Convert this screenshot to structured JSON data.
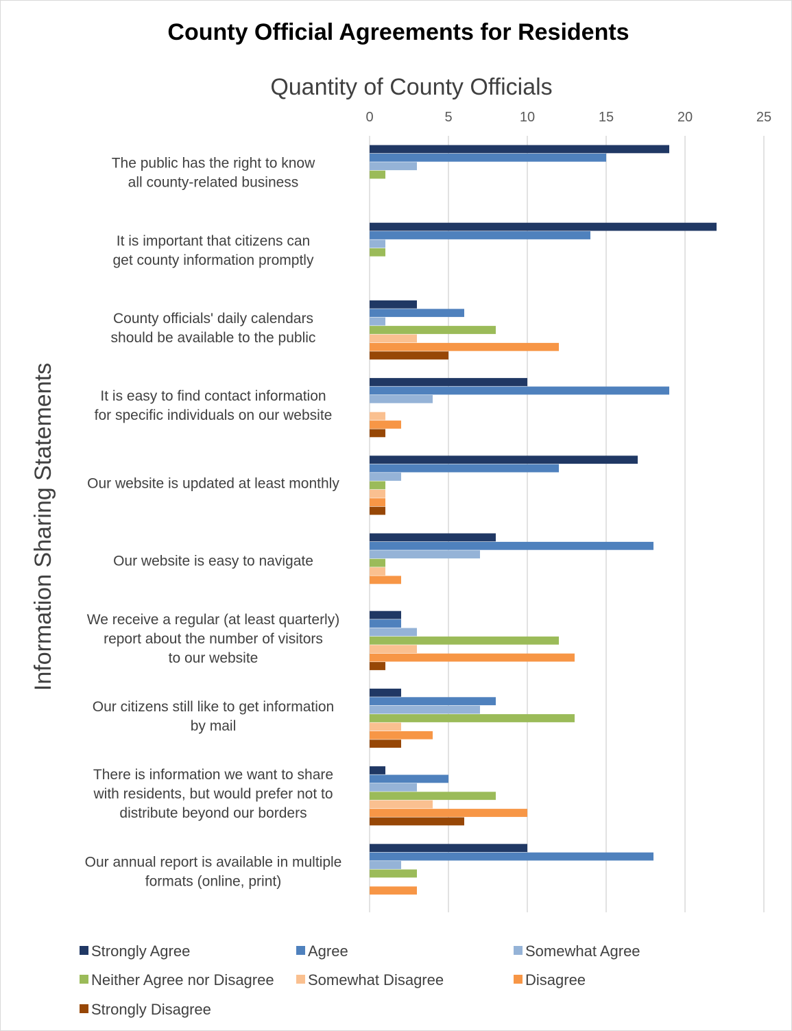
{
  "chart_data": {
    "type": "bar",
    "orientation": "horizontal",
    "title": "County Official Agreements for Residents",
    "xlabel": "Quantity of County Officials",
    "ylabel": "Information Sharing Statements",
    "xlim": [
      0,
      25
    ],
    "xticks": [
      0,
      5,
      10,
      15,
      20,
      25
    ],
    "grid": true,
    "legend_position": "bottom",
    "categories": [
      [
        "The public has the right to know",
        "all county-related business"
      ],
      [
        "It is important that citizens can",
        "get county information promptly"
      ],
      [
        "County officials' daily calendars",
        "should be available to the public"
      ],
      [
        "It is easy to find contact information",
        "for specific individuals on our website"
      ],
      [
        "Our website is updated at least monthly"
      ],
      [
        "Our website is easy to navigate"
      ],
      [
        "We receive a regular (at least quarterly)",
        "report about the number of visitors",
        "to our website"
      ],
      [
        "Our citizens still like to get information",
        "by mail"
      ],
      [
        "There is information we want to share",
        "with residents, but would prefer not to",
        "distribute beyond our borders"
      ],
      [
        "Our annual report is available in multiple",
        "formats (online, print)"
      ]
    ],
    "series": [
      {
        "name": "Strongly Agree",
        "color": "#203864",
        "values": [
          19,
          22,
          3,
          10,
          17,
          8,
          2,
          2,
          1,
          10
        ]
      },
      {
        "name": "Agree",
        "color": "#4f81bd",
        "values": [
          15,
          14,
          6,
          19,
          12,
          18,
          2,
          8,
          5,
          18
        ]
      },
      {
        "name": "Somewhat Agree",
        "color": "#95b3d7",
        "values": [
          3,
          1,
          1,
          4,
          2,
          7,
          3,
          7,
          3,
          2
        ]
      },
      {
        "name": "Neither Agree nor Disagree",
        "color": "#9bbb59",
        "values": [
          1,
          1,
          8,
          0,
          1,
          1,
          12,
          13,
          8,
          3
        ]
      },
      {
        "name": "Somewhat Disagree",
        "color": "#fac090",
        "values": [
          0,
          0,
          3,
          1,
          1,
          1,
          3,
          2,
          4,
          0
        ]
      },
      {
        "name": "Disagree",
        "color": "#f79646",
        "values": [
          0,
          0,
          12,
          2,
          1,
          2,
          13,
          4,
          10,
          3
        ]
      },
      {
        "name": "Strongly Disagree",
        "color": "#974706",
        "values": [
          0,
          0,
          5,
          1,
          1,
          0,
          1,
          2,
          6,
          0
        ]
      }
    ]
  }
}
